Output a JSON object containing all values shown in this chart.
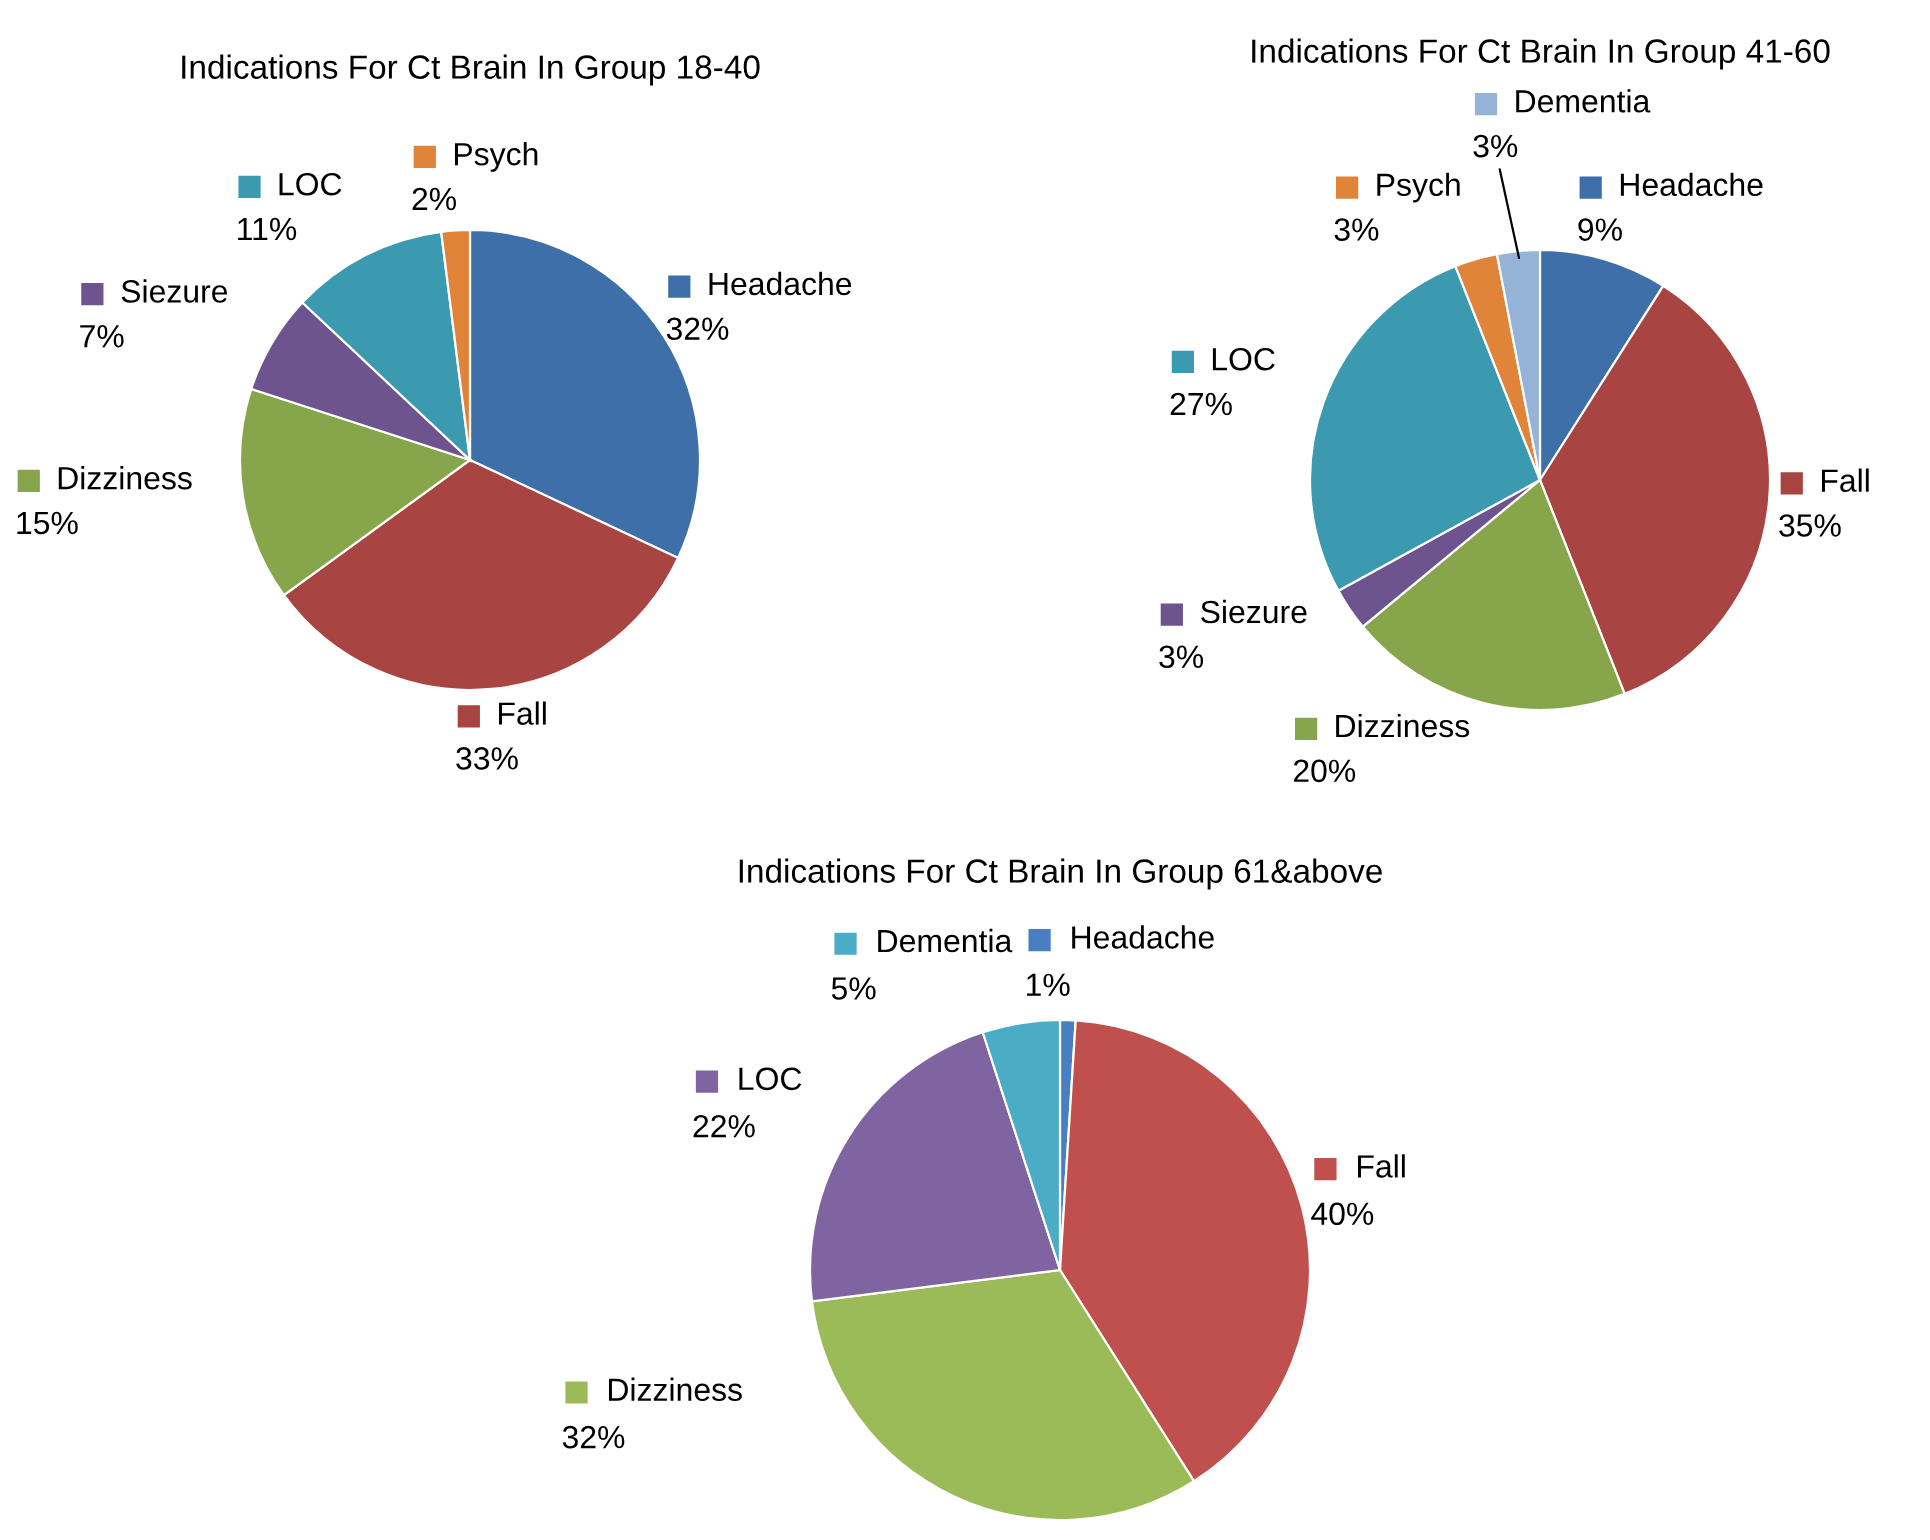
{
  "chart_data": [
    {
      "type": "pie",
      "legend": "top left",
      "title": "Indications For Ct Brain In Group 18-40",
      "categories": [
        "Headache",
        "Fall",
        "Dizziness",
        "Siezure",
        "LOC",
        "Psych"
      ],
      "values": [
        32,
        33,
        15,
        7,
        11,
        2
      ],
      "value_labels": [
        "32%",
        "33%",
        "15%",
        "7%",
        "11%",
        "2%"
      ],
      "colors": [
        "#3f6fa8",
        "#a84442",
        "#87a54a",
        "#6e548f",
        "#3b9ab0",
        "#e0843a"
      ]
    },
    {
      "type": "pie",
      "legend": "top left",
      "title": "Indications For Ct Brain In Group 41-60",
      "categories": [
        "Headache",
        "Fall",
        "Dizziness",
        "Siezure",
        "LOC",
        "Psych",
        "Dementia"
      ],
      "values": [
        9,
        35,
        20,
        3,
        27,
        3,
        3
      ],
      "value_labels": [
        "9%",
        "35%",
        "20%",
        "3%",
        "27%",
        "3%",
        "3%"
      ],
      "colors": [
        "#3f6fa8",
        "#a84442",
        "#87a54a",
        "#6e548f",
        "#3b9ab0",
        "#e0843a",
        "#95b3d7"
      ]
    },
    {
      "type": "pie",
      "legend": "top left",
      "title": "Indications For Ct Brain In Group 61&above",
      "categories": [
        "Headache",
        "Fall",
        "Dizziness",
        "LOC",
        "Dementia"
      ],
      "values": [
        1,
        40,
        32,
        22,
        5
      ],
      "value_labels": [
        "1%",
        "40%",
        "32%",
        "22%",
        "5%"
      ],
      "colors": [
        "#4a7ec2",
        "#c0504d",
        "#9bbb59",
        "#8064a2",
        "#4bacc6"
      ]
    }
  ]
}
